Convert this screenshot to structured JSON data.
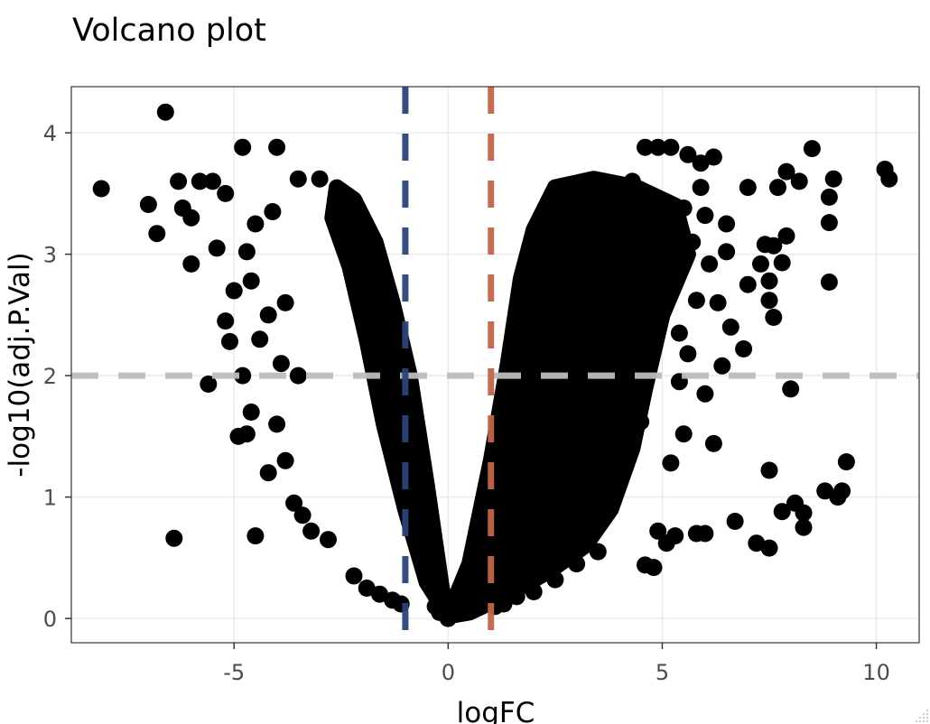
{
  "chart_data": {
    "type": "scatter",
    "title": "Volcano plot",
    "xlabel": "logFC",
    "ylabel": "-log10(adj.P.Val)",
    "xlim": [
      -8.8,
      11.0
    ],
    "ylim": [
      -0.2,
      4.38
    ],
    "x_ticks": [
      -5,
      0,
      5,
      10
    ],
    "x_tick_labels": [
      "-5",
      "0",
      "5",
      "10"
    ],
    "y_ticks": [
      0,
      1,
      2,
      3,
      4
    ],
    "y_tick_labels": [
      "0",
      "1",
      "2",
      "3",
      "4"
    ],
    "grid": true,
    "legend": "none",
    "colors": {
      "points": "#000000",
      "fc_down_line": "#2b4577",
      "fc_up_line": "#c1664a",
      "pval_line": "#bdbdbd",
      "grid": "#ebebeb",
      "panel_border": "#333333",
      "tick_text": "#4d4d4d"
    },
    "thresholds": {
      "logfc_down": -1,
      "logfc_up": 1,
      "neg_log10_p": 2
    },
    "points": [
      [
        -6.6,
        4.17
      ],
      [
        -8.1,
        3.54
      ],
      [
        -7.0,
        3.41
      ],
      [
        -6.8,
        3.17
      ],
      [
        -6.3,
        3.6
      ],
      [
        -6.0,
        3.3
      ],
      [
        -6.0,
        2.92
      ],
      [
        -5.8,
        3.6
      ],
      [
        -5.6,
        1.93
      ],
      [
        -5.5,
        3.6
      ],
      [
        -5.2,
        2.45
      ],
      [
        -5.1,
        2.28
      ],
      [
        -4.9,
        1.5
      ],
      [
        -4.7,
        3.02
      ],
      [
        -4.7,
        1.52
      ],
      [
        -4.6,
        1.7
      ],
      [
        -4.8,
        2.0
      ],
      [
        -4.5,
        3.25
      ],
      [
        -4.2,
        2.5
      ],
      [
        -4.0,
        1.6
      ],
      [
        -4.5,
        0.68
      ],
      [
        -6.4,
        0.66
      ],
      [
        -5.2,
        3.5
      ],
      [
        -4.8,
        3.88
      ],
      [
        -4.0,
        3.88
      ],
      [
        -4.6,
        2.78
      ],
      [
        -4.1,
        3.35
      ],
      [
        -3.9,
        2.1
      ],
      [
        -3.5,
        2.0
      ],
      [
        -3.2,
        0.72
      ],
      [
        -3.6,
        0.95
      ],
      [
        -4.2,
        1.2
      ],
      [
        -4.4,
        2.3
      ],
      [
        -5.0,
        2.7
      ],
      [
        -5.4,
        3.05
      ],
      [
        -6.2,
        3.38
      ],
      [
        -3.5,
        3.62
      ],
      [
        -3.0,
        3.62
      ],
      [
        -3.8,
        2.6
      ],
      [
        -3.8,
        1.3
      ],
      [
        -3.4,
        0.85
      ],
      [
        -2.8,
        0.65
      ],
      [
        -2.2,
        0.35
      ],
      [
        -1.9,
        0.25
      ],
      [
        -1.6,
        0.2
      ],
      [
        -1.3,
        0.15
      ],
      [
        -1.1,
        0.12
      ],
      [
        6.7,
        0.8
      ],
      [
        7.2,
        0.62
      ],
      [
        7.5,
        0.58
      ],
      [
        7.5,
        1.22
      ],
      [
        7.8,
        0.88
      ],
      [
        8.1,
        0.95
      ],
      [
        8.3,
        0.75
      ],
      [
        8.3,
        0.87
      ],
      [
        8.8,
        1.05
      ],
      [
        9.1,
        1.0
      ],
      [
        9.2,
        1.05
      ],
      [
        9.3,
        1.29
      ],
      [
        8.0,
        1.89
      ],
      [
        8.9,
        2.77
      ],
      [
        8.9,
        3.26
      ],
      [
        8.9,
        3.47
      ],
      [
        9.0,
        3.62
      ],
      [
        10.2,
        3.7
      ],
      [
        10.3,
        3.62
      ],
      [
        8.5,
        3.87
      ],
      [
        8.2,
        3.6
      ],
      [
        7.9,
        3.68
      ],
      [
        7.7,
        3.55
      ],
      [
        7.6,
        3.07
      ],
      [
        7.4,
        3.08
      ],
      [
        7.3,
        2.92
      ],
      [
        7.0,
        2.75
      ],
      [
        7.0,
        3.55
      ],
      [
        6.9,
        2.22
      ],
      [
        6.6,
        2.4
      ],
      [
        7.5,
        2.62
      ],
      [
        7.6,
        2.48
      ],
      [
        7.8,
        2.93
      ],
      [
        7.9,
        3.15
      ],
      [
        7.5,
        2.78
      ],
      [
        6.5,
        3.25
      ],
      [
        6.2,
        3.8
      ],
      [
        5.9,
        3.75
      ],
      [
        5.6,
        3.82
      ],
      [
        5.2,
        3.88
      ],
      [
        4.9,
        3.88
      ],
      [
        4.6,
        3.88
      ],
      [
        6.2,
        1.44
      ],
      [
        5.8,
        0.7
      ],
      [
        6.0,
        0.7
      ],
      [
        5.3,
        0.68
      ],
      [
        5.1,
        0.62
      ],
      [
        4.6,
        0.44
      ],
      [
        4.8,
        0.42
      ],
      [
        4.9,
        0.72
      ],
      [
        5.2,
        1.28
      ],
      [
        4.5,
        1.62
      ],
      [
        4.2,
        1.35
      ],
      [
        3.5,
        0.55
      ],
      [
        3.0,
        0.45
      ],
      [
        2.5,
        0.32
      ],
      [
        2.0,
        0.22
      ],
      [
        1.6,
        0.18
      ],
      [
        1.3,
        0.12
      ],
      [
        1.1,
        0.1
      ],
      [
        6.1,
        2.92
      ],
      [
        6.3,
        2.6
      ],
      [
        6.4,
        2.08
      ],
      [
        6.0,
        1.85
      ],
      [
        5.8,
        2.62
      ],
      [
        5.6,
        2.18
      ],
      [
        5.4,
        1.95
      ],
      [
        5.5,
        1.52
      ],
      [
        5.4,
        2.35
      ],
      [
        5.7,
        3.1
      ],
      [
        6.0,
        3.32
      ],
      [
        6.5,
        3.02
      ],
      [
        5.9,
        3.55
      ],
      [
        5.5,
        3.38
      ],
      [
        5.2,
        3.02
      ],
      [
        4.8,
        3.3
      ],
      [
        4.3,
        3.6
      ],
      [
        4.0,
        3.5
      ],
      [
        -0.2,
        0.05
      ],
      [
        0.2,
        0.05
      ],
      [
        0.0,
        0.0
      ],
      [
        -0.3,
        0.1
      ],
      [
        0.3,
        0.1
      ]
    ]
  }
}
